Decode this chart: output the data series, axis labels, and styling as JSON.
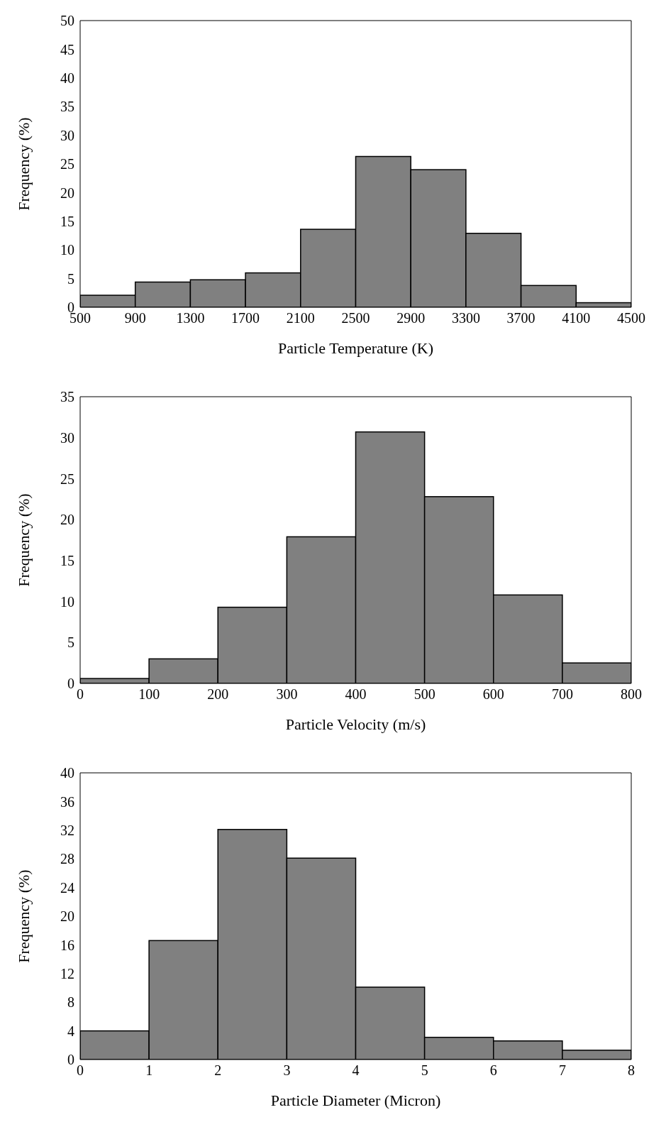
{
  "chart_data": [
    {
      "type": "histogram",
      "xlabel": "Particle Temperature (K)",
      "ylabel": "Frequency (%)",
      "bins": [
        500,
        900,
        1300,
        1700,
        2100,
        2500,
        2900,
        3300,
        3700,
        4100,
        4500
      ],
      "values": [
        2.1,
        4.4,
        4.8,
        6.0,
        13.6,
        26.3,
        24.0,
        12.9,
        3.8,
        0.8
      ],
      "color": "#808080",
      "xlim": [
        500,
        4500
      ],
      "xticks": [
        500,
        900,
        1300,
        1700,
        2100,
        2500,
        2900,
        3300,
        3700,
        4100,
        4500
      ],
      "ylim": [
        0,
        50
      ],
      "yticks": [
        0,
        5,
        10,
        15,
        20,
        25,
        30,
        35,
        40,
        45,
        50
      ]
    },
    {
      "type": "histogram",
      "xlabel": "Particle Velocity (m/s)",
      "ylabel": "Frequency (%)",
      "bins": [
        0,
        100,
        200,
        300,
        400,
        500,
        600,
        700,
        800
      ],
      "values": [
        0.6,
        3.0,
        9.3,
        17.9,
        30.7,
        22.8,
        10.8,
        2.5
      ],
      "color": "#808080",
      "xlim": [
        0,
        800
      ],
      "xticks": [
        0,
        100,
        200,
        300,
        400,
        500,
        600,
        700,
        800
      ],
      "ylim": [
        0,
        35
      ],
      "yticks": [
        0,
        5,
        10,
        15,
        20,
        25,
        30,
        35
      ]
    },
    {
      "type": "histogram",
      "xlabel": "Particle Diameter (Micron)",
      "ylabel": "Frequency (%)",
      "bins": [
        0,
        1,
        2,
        3,
        4,
        5,
        6,
        7,
        8
      ],
      "values": [
        4.0,
        16.6,
        32.1,
        28.1,
        10.1,
        3.1,
        2.6,
        1.3
      ],
      "color": "#808080",
      "xlim": [
        0,
        8
      ],
      "xticks": [
        0,
        1,
        2,
        3,
        4,
        5,
        6,
        7,
        8
      ],
      "ylim": [
        0,
        40
      ],
      "yticks": [
        0,
        4,
        8,
        12,
        16,
        20,
        24,
        28,
        32,
        36,
        40
      ]
    }
  ]
}
